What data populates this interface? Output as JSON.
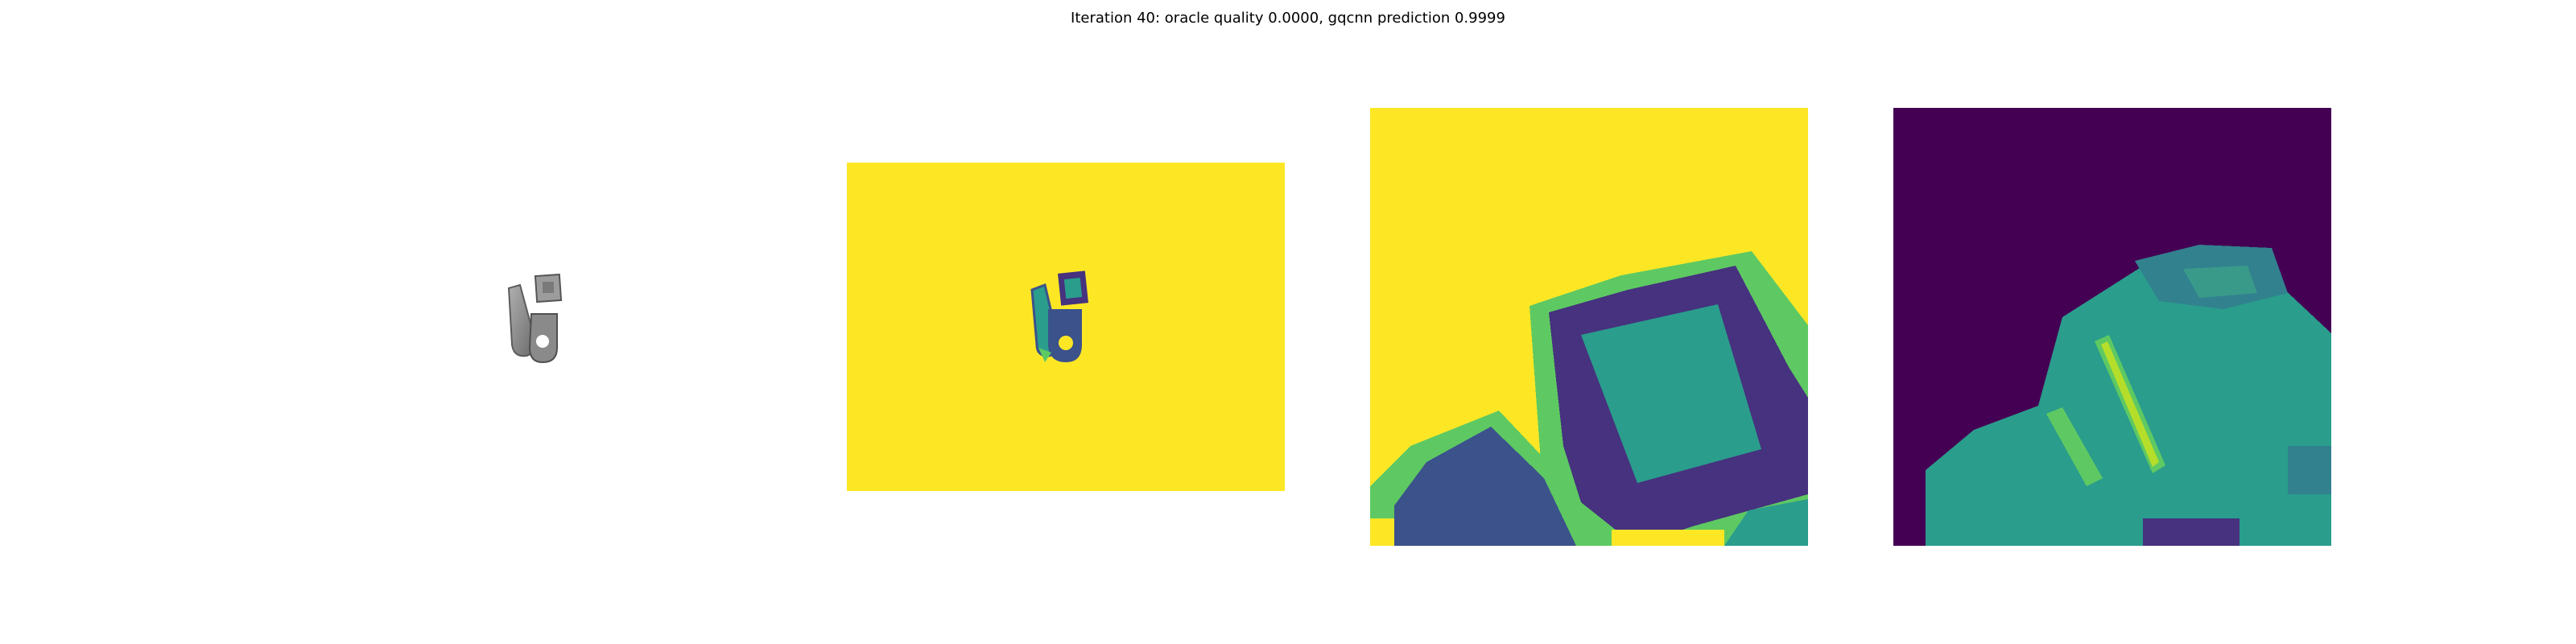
{
  "figure": {
    "title": "Iteration 40: oracle quality 0.0000, gqcnn prediction 0.9999"
  },
  "panels": [
    {
      "name": "rendered-object-view",
      "colormap": "gray"
    },
    {
      "name": "depth-image-full",
      "colormap": "viridis"
    },
    {
      "name": "depth-crop-zoomed",
      "colormap": "viridis"
    },
    {
      "name": "gradient-crop-zoomed",
      "colormap": "viridis"
    }
  ],
  "colors": {
    "viridis_yellow": "#fde725",
    "viridis_purple": "#440154",
    "viridis_teal": "#2a9d8c",
    "viridis_blue": "#3b528b",
    "viridis_green": "#5ec962",
    "viridis_dark": "#46327e"
  }
}
